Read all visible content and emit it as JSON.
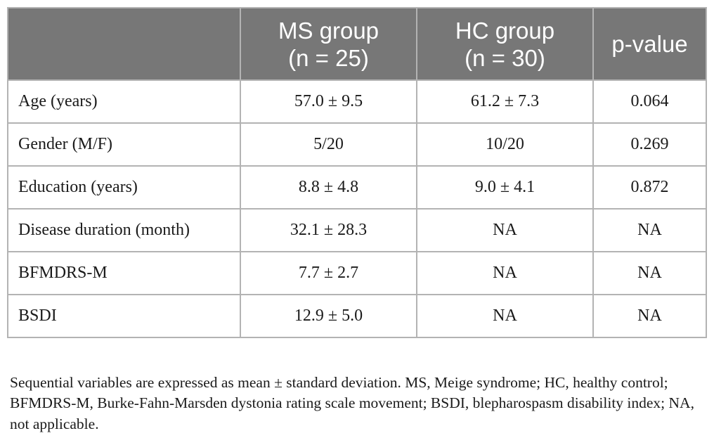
{
  "table": {
    "header": {
      "col0": "",
      "col1_line1": "MS group",
      "col1_line2": "(n = 25)",
      "col2_line1": "HC group",
      "col2_line2": "(n = 30)",
      "col3": "p-value"
    },
    "rows": [
      {
        "label": "Age (years)",
        "ms": "57.0 ± 9.5",
        "hc": "61.2 ± 7.3",
        "p": "0.064"
      },
      {
        "label": "Gender (M/F)",
        "ms": "5/20",
        "hc": "10/20",
        "p": "0.269"
      },
      {
        "label": "Education (years)",
        "ms": "8.8 ± 4.8",
        "hc": "9.0 ± 4.1",
        "p": "0.872"
      },
      {
        "label": "Disease duration (month)",
        "ms": "32.1 ± 28.3",
        "hc": "NA",
        "p": "NA"
      },
      {
        "label": "BFMDRS-M",
        "ms": "7.7 ± 2.7",
        "hc": "NA",
        "p": "NA"
      },
      {
        "label": "BSDI",
        "ms": "12.9 ± 5.0",
        "hc": "NA",
        "p": "NA"
      }
    ]
  },
  "footnote": "Sequential variables are expressed as mean ± standard deviation. MS, Meige syndrome; HC, healthy control; BFMDRS-M, Burke-Fahn-Marsden dystonia rating scale movement; BSDI, blepharospasm disability index; NA, not applicable.",
  "colors": {
    "header_bg": "#777777",
    "header_text": "#ffffff",
    "border": "#b3b3b3",
    "body_text": "#1a1a1a"
  }
}
